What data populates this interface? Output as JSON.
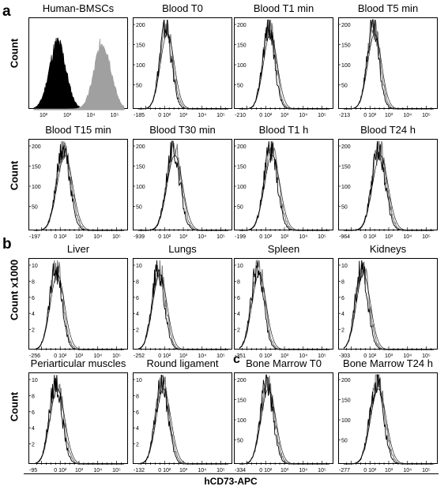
{
  "panels": [
    {
      "letter": "a"
    },
    {
      "letter": "b"
    },
    {
      "letter": "c"
    }
  ],
  "y_labels": {
    "count": "Count",
    "count_x1000": "Count x1000"
  },
  "x_axis_label": "hCD73-APC",
  "chart_data": [
    {
      "type": "area",
      "title": "Human-BMSCs",
      "ylabel": "Count",
      "x_min_label": "",
      "scale": "log",
      "series": [
        {
          "color": "#000000",
          "center": 2.6,
          "width": 0.35,
          "peak": 0.75
        },
        {
          "color": "#a0a0a0",
          "center": 4.5,
          "width": 0.35,
          "peak": 0.75
        }
      ]
    },
    {
      "type": "area",
      "title": "Blood T0",
      "x_min_label": "-185",
      "y_ticks": [
        "200",
        "150",
        "100",
        "50"
      ],
      "center": 2.1,
      "width": 0.32
    },
    {
      "type": "area",
      "title": "Blood T1 min",
      "x_min_label": "-210",
      "y_ticks": [
        "200",
        "150",
        "100",
        "50"
      ],
      "center": 2.2,
      "width": 0.32
    },
    {
      "type": "area",
      "title": "Blood T5 min",
      "x_min_label": "-213",
      "y_ticks": [
        "200",
        "150",
        "100",
        "50"
      ],
      "center": 2.2,
      "width": 0.32
    },
    {
      "type": "area",
      "title": "Blood T15 min",
      "ylabel": "Count",
      "x_min_label": "-197",
      "y_ticks": [
        "200",
        "150",
        "100",
        "50"
      ],
      "center": 2.2,
      "width": 0.36
    },
    {
      "type": "area",
      "title": "Blood T30 min",
      "x_min_label": "-939",
      "y_ticks": [
        "200",
        "150",
        "100",
        "50"
      ],
      "center": 2.5,
      "width": 0.36
    },
    {
      "type": "area",
      "title": "Blood T1 h",
      "x_min_label": "-199",
      "y_ticks": [
        "200",
        "150",
        "100",
        "50"
      ],
      "center": 2.3,
      "width": 0.36
    },
    {
      "type": "area",
      "title": "Blood T24 h",
      "x_min_label": "-964",
      "y_ticks": [
        "200",
        "150",
        "100",
        "50"
      ],
      "center": 2.5,
      "width": 0.36
    },
    {
      "type": "area",
      "title": "Liver",
      "ylabel": "Count x1000",
      "x_min_label": "-256",
      "y_ticks": [
        "10",
        "8",
        "6",
        "4",
        "2"
      ],
      "center": 1.8,
      "width": 0.33
    },
    {
      "type": "area",
      "title": "Lungs",
      "x_min_label": "-252",
      "y_ticks": [
        "10",
        "8",
        "6",
        "4",
        "2"
      ],
      "center": 1.7,
      "width": 0.33
    },
    {
      "type": "area",
      "title": "Spleen",
      "x_min_label": "-351",
      "y_ticks": [
        "10",
        "8",
        "6",
        "4",
        "2"
      ],
      "center": 1.6,
      "width": 0.33
    },
    {
      "type": "area",
      "title": "Kidneys",
      "x_min_label": "-303",
      "y_ticks": [
        "10",
        "8",
        "6",
        "4",
        "2"
      ],
      "center": 1.6,
      "width": 0.33
    },
    {
      "type": "area",
      "title": "Periarticular muscles",
      "ylabel": "Count",
      "x_min_label": "-95",
      "y_ticks": [
        "10",
        "8",
        "6",
        "4",
        "2"
      ],
      "center": 1.8,
      "width": 0.34
    },
    {
      "type": "area",
      "title": "Round ligament",
      "x_min_label": "-132",
      "y_ticks": [
        "10",
        "8",
        "6",
        "4",
        "2"
      ],
      "center": 1.9,
      "width": 0.34
    },
    {
      "type": "area",
      "title": "Bone Marrow T0",
      "x_min_label": "-334",
      "y_ticks": [
        "200",
        "150",
        "100",
        "50"
      ],
      "center": 2.1,
      "width": 0.34
    },
    {
      "type": "area",
      "title": "Bone Marrow T24 h",
      "x_min_label": "-277",
      "y_ticks": [
        "200",
        "150",
        "100",
        "50"
      ],
      "center": 2.4,
      "width": 0.36
    }
  ]
}
